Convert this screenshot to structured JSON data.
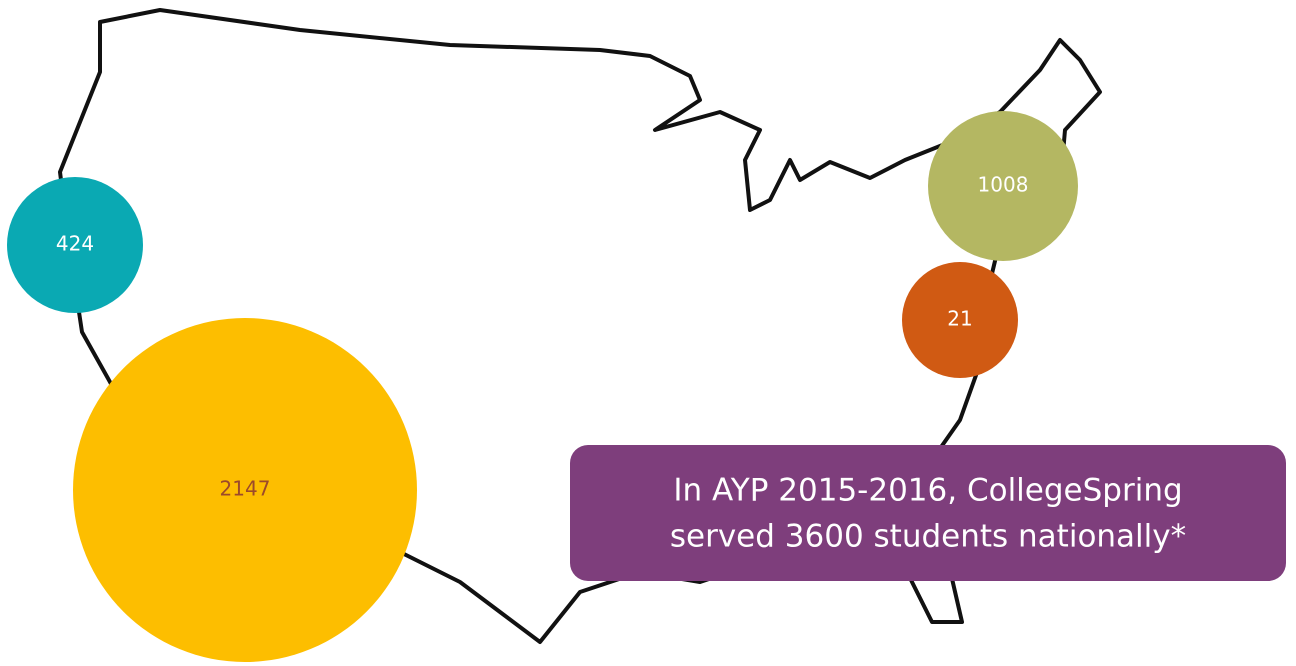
{
  "bubbles": [
    {
      "value": 424,
      "color": "#0aa9b3",
      "text_color": "#ffffff"
    },
    {
      "value": 2147,
      "color": "#fdbe00",
      "text_color": "#9c4a2a"
    },
    {
      "value": 1008,
      "color": "#b4b762",
      "text_color": "#ffffff"
    },
    {
      "value": 21,
      "color": "#d05a13",
      "text_color": "#ffffff"
    }
  ],
  "callout": {
    "lines": [
      "In AYP 2015-2016, CollegeSpring",
      "served 3600 students nationally*"
    ],
    "color": "#7e3e7c"
  }
}
